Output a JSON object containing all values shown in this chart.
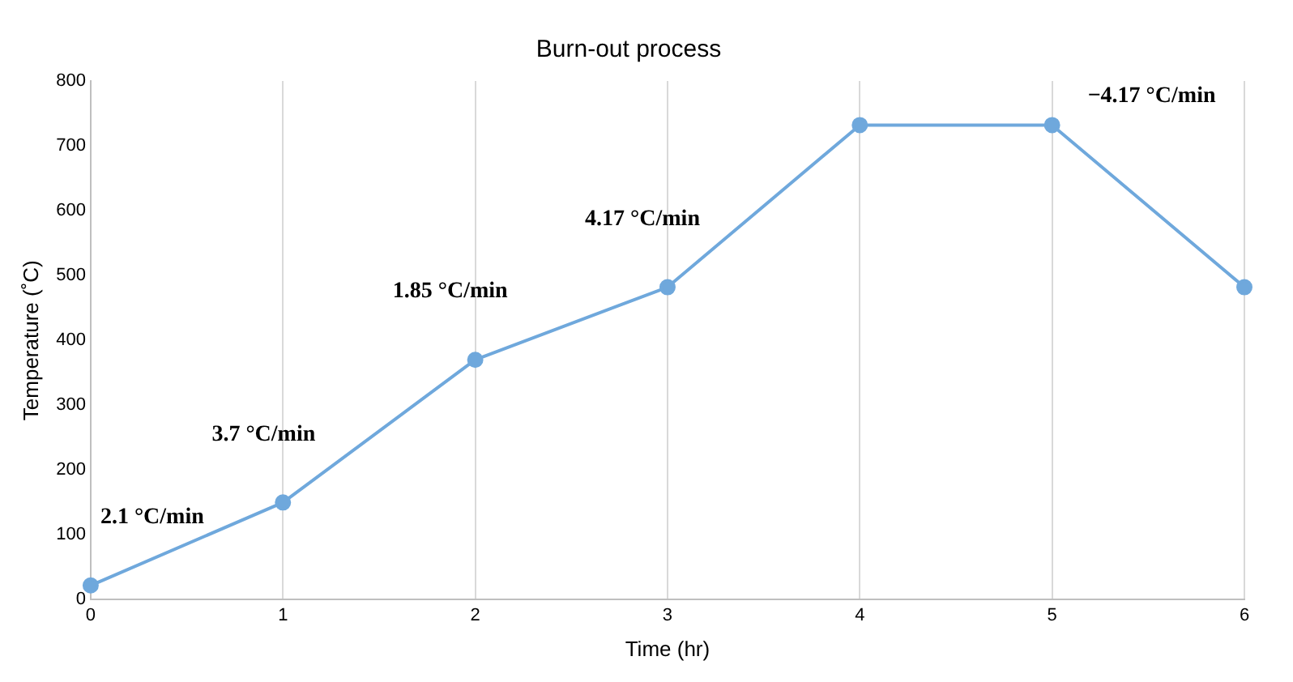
{
  "chart_data": {
    "type": "line",
    "title": "Burn-out process",
    "xlabel": "Time (hr)",
    "ylabel": "Temperature (˚C)",
    "x": [
      0,
      1,
      2,
      3,
      4,
      5,
      6
    ],
    "series": [
      {
        "color": "#6fa8dc",
        "values": [
          22,
          150,
          370,
          482,
          732,
          732,
          482
        ]
      }
    ],
    "xlim": [
      0,
      6
    ],
    "xticks": [
      0,
      1,
      2,
      3,
      4,
      5,
      6
    ],
    "ylim": [
      0,
      800
    ],
    "yticks": [
      0,
      100,
      200,
      300,
      400,
      500,
      600,
      700,
      800
    ],
    "grid": "x",
    "marker": "circle",
    "line_style": "solid",
    "legend": false,
    "annotations": [
      "2.1 °C/min",
      "3.7 °C/min",
      "1.85 °C/min",
      "4.17 °C/min",
      "−4.17 °C/min"
    ]
  }
}
